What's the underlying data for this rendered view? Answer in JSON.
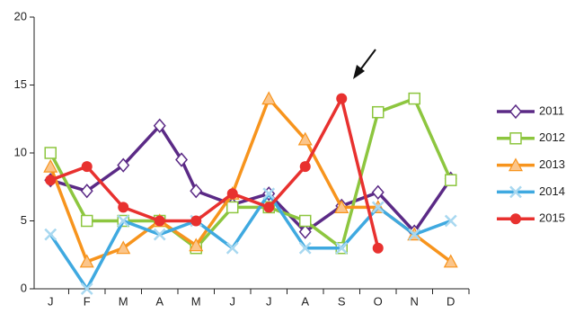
{
  "chart_data": {
    "type": "line",
    "xlim": [
      0.55,
      12.5
    ],
    "xticks": [
      {
        "value": 1,
        "label": "J"
      },
      {
        "value": 2,
        "label": "F"
      },
      {
        "value": 3,
        "label": "M"
      },
      {
        "value": 4,
        "label": "A"
      },
      {
        "value": 5,
        "label": "M"
      },
      {
        "value": 6,
        "label": "J"
      },
      {
        "value": 7,
        "label": "J"
      },
      {
        "value": 8,
        "label": "A"
      },
      {
        "value": 9,
        "label": "S"
      },
      {
        "value": 10,
        "label": "O"
      },
      {
        "value": 11,
        "label": "N"
      },
      {
        "value": 12,
        "label": "D"
      }
    ],
    "ylim": [
      0,
      20
    ],
    "yticks": [
      0,
      5,
      10,
      15,
      20
    ],
    "series": [
      {
        "name": "2011",
        "color": "#5b2a86",
        "marker": "diamond",
        "x": [
          1,
          2,
          3,
          4,
          4.6,
          5,
          6,
          7,
          8,
          9,
          10,
          11,
          12
        ],
        "values": [
          8,
          7.2,
          9.1,
          12,
          9.5,
          7.2,
          6.2,
          7,
          4.2,
          6.1,
          7.1,
          4.2,
          8.1
        ]
      },
      {
        "name": "2012",
        "color": "#8dc63f",
        "marker": "square",
        "x": [
          1,
          2,
          3,
          4,
          5,
          6,
          7,
          8,
          9,
          10,
          11,
          12
        ],
        "values": [
          10,
          5,
          5,
          5,
          3,
          6,
          6,
          5,
          3,
          13,
          14,
          8
        ]
      },
      {
        "name": "2013",
        "color": "#f7941d",
        "marker": "triangle",
        "x": [
          1,
          2,
          3,
          4,
          5,
          6,
          7,
          8,
          9,
          10,
          11,
          12
        ],
        "values": [
          9,
          2,
          3,
          5,
          3.2,
          7,
          14,
          11,
          6,
          6,
          4,
          2
        ]
      },
      {
        "name": "2014",
        "color": "#3fa9e0",
        "marker": "cross",
        "x": [
          1,
          2,
          3,
          4,
          5,
          6,
          7,
          8,
          9,
          10,
          11,
          12
        ],
        "values": [
          4,
          0,
          5,
          4,
          5,
          3,
          7,
          3,
          3,
          6,
          4,
          5
        ]
      },
      {
        "name": "2015",
        "color": "#e8312f",
        "marker": "circle",
        "x": [
          1,
          2,
          3,
          4,
          5,
          6,
          7,
          8,
          9,
          10
        ],
        "values": [
          8,
          9,
          6,
          5,
          5,
          7,
          6,
          9,
          14,
          3
        ]
      }
    ]
  }
}
